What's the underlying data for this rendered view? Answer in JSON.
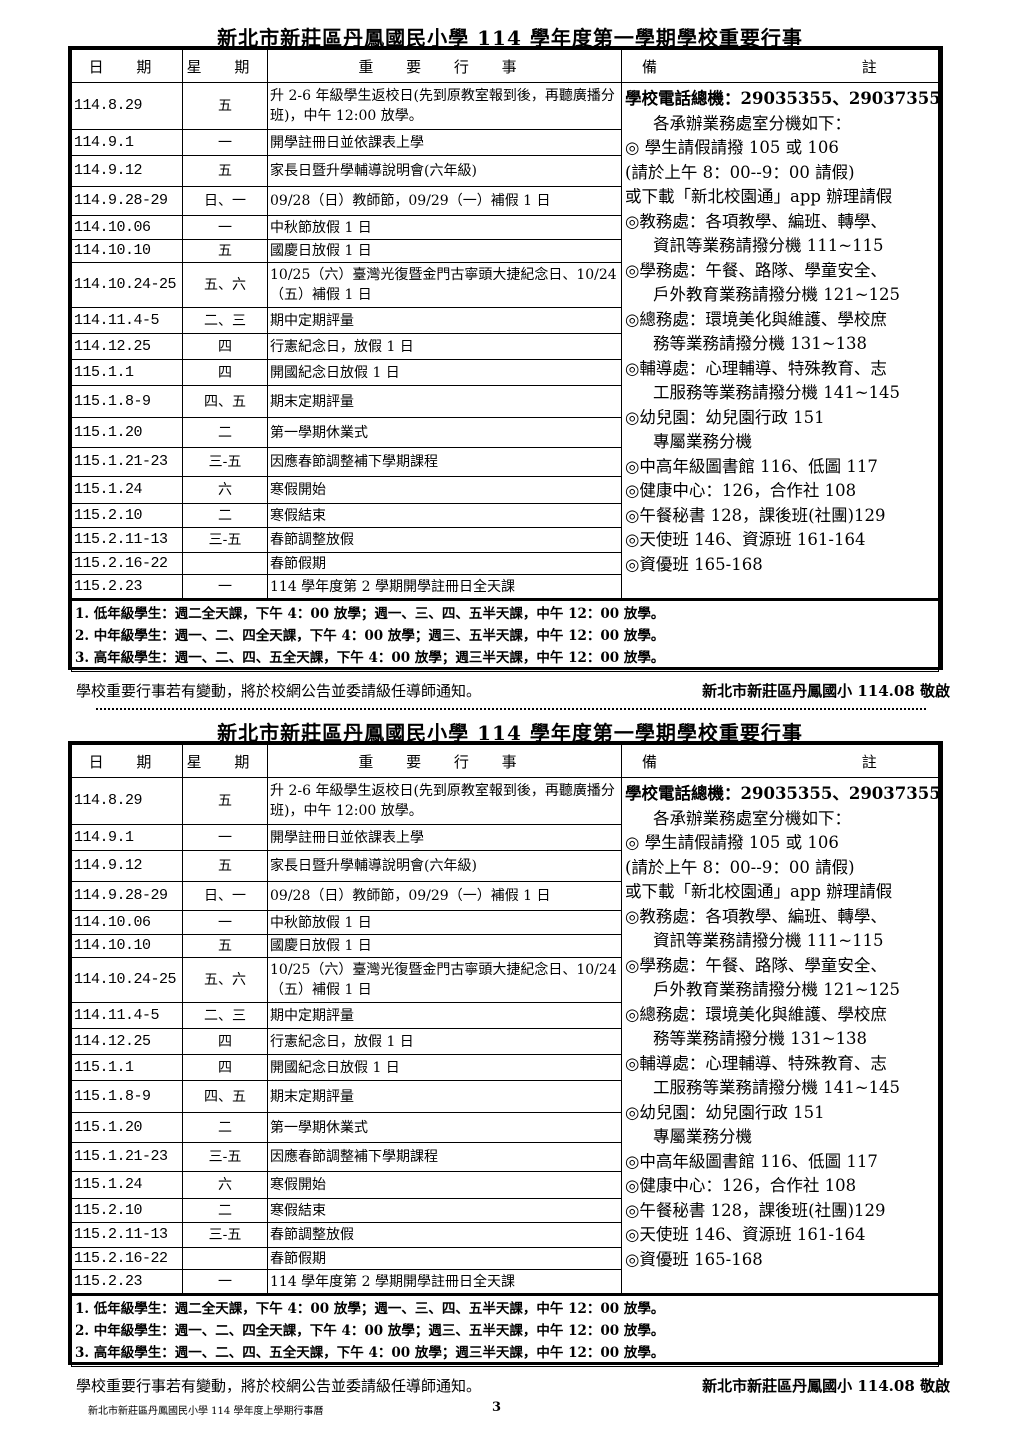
{
  "title": "新北市新莊區丹鳳國民小學 114 學年度第一學期學校重要行事",
  "headers": {
    "date": "日 期",
    "weekday": "星 期",
    "event": "重 要 行 事",
    "notes": "備 註"
  },
  "rows": [
    {
      "date": "114.8.29",
      "weekday": "五",
      "event": "升 2-6 年級學生返校日(先到原教室報到後，再聽廣播分班)，中午 12:00 放學。"
    },
    {
      "date": "114.9.1",
      "weekday": "一",
      "event": "開學註冊日並依課表上學"
    },
    {
      "date": "114.9.12",
      "weekday": "五",
      "event": "家長日暨升學輔導說明會(六年級)"
    },
    {
      "date": "114.9.28-29",
      "weekday": "日、一",
      "event": "09/28（日）教師節，09/29（一）補假 1 日"
    },
    {
      "date": "114.10.06",
      "weekday": "一",
      "event": "中秋節放假 1 日"
    },
    {
      "date": "114.10.10",
      "weekday": "五",
      "event": "國慶日放假 1 日"
    },
    {
      "date": "114.10.24-25",
      "weekday": "五、六",
      "event": "10/25（六）臺灣光復暨金門古寧頭大捷紀念日、10/24（五）補假 1 日"
    },
    {
      "date": "114.11.4-5",
      "weekday": "二、三",
      "event": "期中定期評量"
    },
    {
      "date": "114.12.25",
      "weekday": "四",
      "event": "行憲紀念日，放假 1 日"
    },
    {
      "date": "115.1.1",
      "weekday": "四",
      "event": "開國紀念日放假 1 日"
    },
    {
      "date": "115.1.8-9",
      "weekday": "四、五",
      "event": "期末定期評量"
    },
    {
      "date": "115.1.20",
      "weekday": "二",
      "event": "第一學期休業式"
    },
    {
      "date": "115.1.21-23",
      "weekday": "三-五",
      "event": "因應春節調整補下學期課程"
    },
    {
      "date": "115.1.24",
      "weekday": "六",
      "event": "寒假開始"
    },
    {
      "date": "115.2.10",
      "weekday": "二",
      "event": "寒假結束"
    },
    {
      "date": "115.2.11-13",
      "weekday": "三-五",
      "event": "春節調整放假"
    },
    {
      "date": "115.2.16-22",
      "weekday": "",
      "event": "春節假期"
    },
    {
      "date": "115.2.23",
      "weekday": "一",
      "event": "114 學年度第 2 學期開學註冊日全天課"
    }
  ],
  "notes": [
    {
      "text": "學校電話總機：29035355、29037355",
      "indent": false,
      "bold": true
    },
    {
      "text": "各承辦業務處室分機如下：",
      "indent": true
    },
    {
      "text": "◎ 學生請假請撥 105 或 106",
      "indent": false
    },
    {
      "text": "(請於上午 8：00--9：00 請假)",
      "indent": false
    },
    {
      "text": "或下載「新北校園通」app 辦理請假",
      "indent": false
    },
    {
      "text": "◎教務處：各項教學、編班、轉學、",
      "indent": false
    },
    {
      "text": "資訊等業務請撥分機 111~115",
      "indent": true
    },
    {
      "text": "◎學務處：午餐、路隊、學童安全、",
      "indent": false
    },
    {
      "text": "戶外教育業務請撥分機 121~125",
      "indent": true
    },
    {
      "text": "◎總務處：環境美化與維護、學校庶",
      "indent": false
    },
    {
      "text": "務等業務請撥分機 131~138",
      "indent": true
    },
    {
      "text": "◎輔導處：心理輔導、特殊教育、志",
      "indent": false
    },
    {
      "text": "工服務等業務請撥分機 141~145",
      "indent": true
    },
    {
      "text": "◎幼兒園：幼兒園行政 151",
      "indent": false
    },
    {
      "text": "專屬業務分機",
      "indent": true
    },
    {
      "text": "◎中高年級圖書館 116、低圖 117",
      "indent": false
    },
    {
      "text": "◎健康中心：126，合作社 108",
      "indent": false
    },
    {
      "text": "◎午餐秘書 128，課後班(社團)129",
      "indent": false
    },
    {
      "text": "◎天使班 146、資源班 161-164",
      "indent": false
    },
    {
      "text": "◎資優班 165-168",
      "indent": false
    }
  ],
  "schedule_notes": [
    "1. 低年級學生：週二全天課，下午 4：00 放學；週一、三、四、五半天課，中午 12：00 放學。",
    "2. 中年級學生：週一、二、四全天課，下午 4：00 放學；週三、五半天課，中午 12：00 放學。",
    "3. 高年級學生：週一、二、四、五全天課，下午 4：00 放學；週三半天課，中午 12：00 放學。"
  ],
  "footer_notice": "學校重要行事若有變動，將於校網公告並委請級任導師通知。",
  "signature": "新北市新莊區丹鳳國小 114.08 敬啟",
  "page_footer": "新北市新莊區丹鳳國民小學 114 學年度上學期行事曆",
  "page_number": "3"
}
